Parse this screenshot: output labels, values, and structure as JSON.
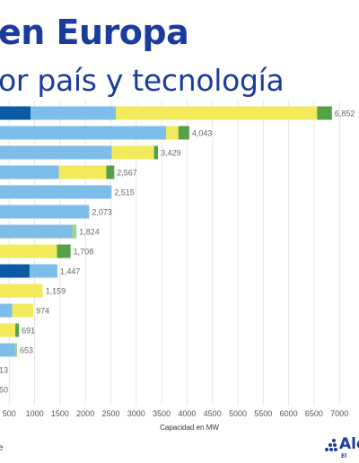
{
  "title": "en Europa",
  "subtitle": "or país y tecnología",
  "footer_text": "e",
  "logo": {
    "text": "Ale",
    "sub": "El"
  },
  "colors": {
    "dark_blue": "#0b5aa6",
    "light_blue": "#7dbde9",
    "yellow": "#f2ea5a",
    "green": "#55a147",
    "light_green": "#9fd48a",
    "grid": "#e6e6e6"
  },
  "chart_data": {
    "type": "bar",
    "orientation": "horizontal",
    "stacked": true,
    "xlabel": "Capacidad en MW",
    "xlim": [
      0,
      7000
    ],
    "xticks": [
      "500",
      "1000",
      "1500",
      "2000",
      "2500",
      "3000",
      "3500",
      "4000",
      "4500",
      "5000",
      "5500",
      "6000",
      "6500",
      "7000"
    ],
    "grid": true,
    "bars": [
      {
        "total_label": "6,852",
        "segments": [
          {
            "color": "dark_blue",
            "value": 920
          },
          {
            "color": "light_blue",
            "value": 1680
          },
          {
            "color": "yellow",
            "value": 3960
          },
          {
            "color": "green",
            "value": 292
          }
        ]
      },
      {
        "total_label": "4,043",
        "segments": [
          {
            "color": "light_blue",
            "value": 3590
          },
          {
            "color": "yellow",
            "value": 240
          },
          {
            "color": "green",
            "value": 213
          }
        ]
      },
      {
        "total_label": "3,429",
        "segments": [
          {
            "color": "light_blue",
            "value": 2520
          },
          {
            "color": "yellow",
            "value": 830
          },
          {
            "color": "green",
            "value": 79
          }
        ]
      },
      {
        "total_label": "2,567",
        "segments": [
          {
            "color": "light_blue",
            "value": 1480
          },
          {
            "color": "yellow",
            "value": 930
          },
          {
            "color": "green",
            "value": 157
          }
        ]
      },
      {
        "total_label": "2,515",
        "segments": [
          {
            "color": "light_blue",
            "value": 2515
          }
        ]
      },
      {
        "total_label": "2,073",
        "segments": [
          {
            "color": "light_blue",
            "value": 2073
          }
        ]
      },
      {
        "total_label": "1,824",
        "segments": [
          {
            "color": "light_blue",
            "value": 1740
          },
          {
            "color": "light_green",
            "value": 84
          }
        ]
      },
      {
        "total_label": "1,708",
        "segments": [
          {
            "color": "yellow",
            "value": 1440
          },
          {
            "color": "green",
            "value": 268
          }
        ]
      },
      {
        "total_label": "1,447",
        "segments": [
          {
            "color": "dark_blue",
            "value": 900
          },
          {
            "color": "light_blue",
            "value": 547
          }
        ]
      },
      {
        "total_label": "1,159",
        "segments": [
          {
            "color": "yellow",
            "value": 1159
          }
        ]
      },
      {
        "total_label": "974",
        "segments": [
          {
            "color": "light_blue",
            "value": 560
          },
          {
            "color": "yellow",
            "value": 414
          }
        ]
      },
      {
        "total_label": "691",
        "segments": [
          {
            "color": "yellow",
            "value": 620
          },
          {
            "color": "green",
            "value": 71
          }
        ]
      },
      {
        "total_label": "653",
        "segments": [
          {
            "color": "light_blue",
            "value": 610
          },
          {
            "color": "light_green",
            "value": 43
          }
        ]
      },
      {
        "total_label": "13",
        "segments": [
          {
            "color": "light_blue",
            "value": 13
          }
        ]
      },
      {
        "total_label": "50",
        "segments": [
          {
            "color": "light_blue",
            "value": 50
          }
        ]
      }
    ]
  }
}
